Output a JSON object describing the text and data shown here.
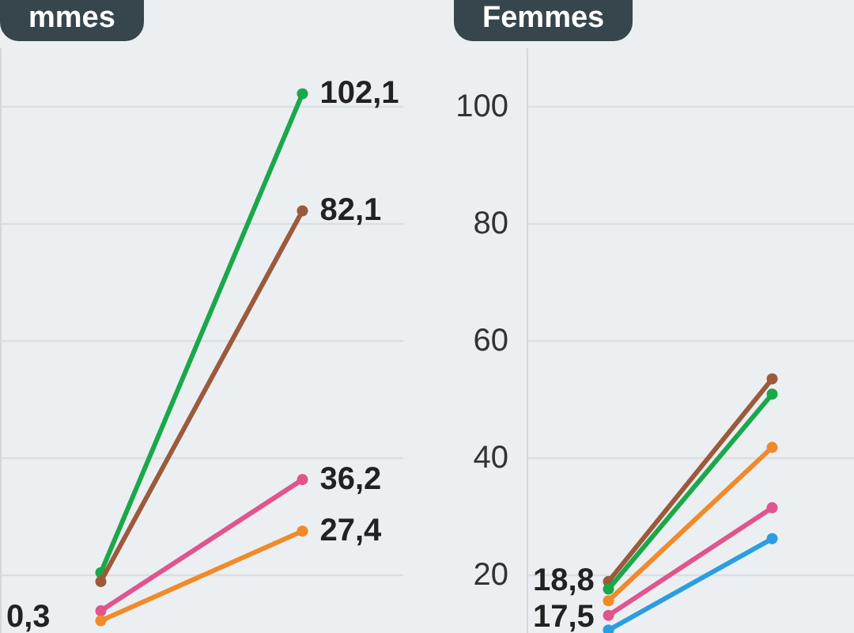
{
  "chart_data": [
    {
      "type": "line",
      "title": "mmes",
      "categories": [
        null,
        null
      ],
      "ylim": [
        10,
        110
      ],
      "yticks": [
        20,
        40,
        60,
        80,
        100
      ],
      "tick_labels": false,
      "grid": "y",
      "marker": "circle",
      "annotations": [
        "0,3"
      ],
      "series": [
        {
          "color": "#1aa84a",
          "values": [
            20.3,
            102.1
          ],
          "value_labels": [
            null,
            "102,1"
          ]
        },
        {
          "color": "#9c5a3c",
          "values": [
            18.8,
            82.1
          ],
          "value_labels": [
            null,
            "82,1"
          ]
        },
        {
          "color": "#e0558e",
          "values": [
            13.8,
            36.2
          ],
          "value_labels": [
            null,
            "36,2"
          ]
        },
        {
          "color": "#f08a2a",
          "values": [
            12.1,
            27.4
          ],
          "value_labels": [
            null,
            "27,4"
          ]
        }
      ]
    },
    {
      "type": "line",
      "title": "Femmes",
      "categories": [
        null,
        null
      ],
      "ylim": [
        10,
        110
      ],
      "yticks": [
        20,
        40,
        60,
        80,
        100
      ],
      "tick_labels": "y",
      "grid": "y",
      "marker": "circle",
      "annotations": [
        "18,8",
        "17,5"
      ],
      "series": [
        {
          "color": "#9c5a3c",
          "values": [
            18.8,
            53.4
          ]
        },
        {
          "color": "#1aa84a",
          "values": [
            17.5,
            50.8
          ]
        },
        {
          "color": "#f08a2a",
          "values": [
            15.5,
            41.7
          ]
        },
        {
          "color": "#e0558e",
          "values": [
            13,
            31.4
          ]
        },
        {
          "color": "#2a9ee0",
          "values": [
            10.5,
            26.1
          ]
        }
      ]
    }
  ]
}
